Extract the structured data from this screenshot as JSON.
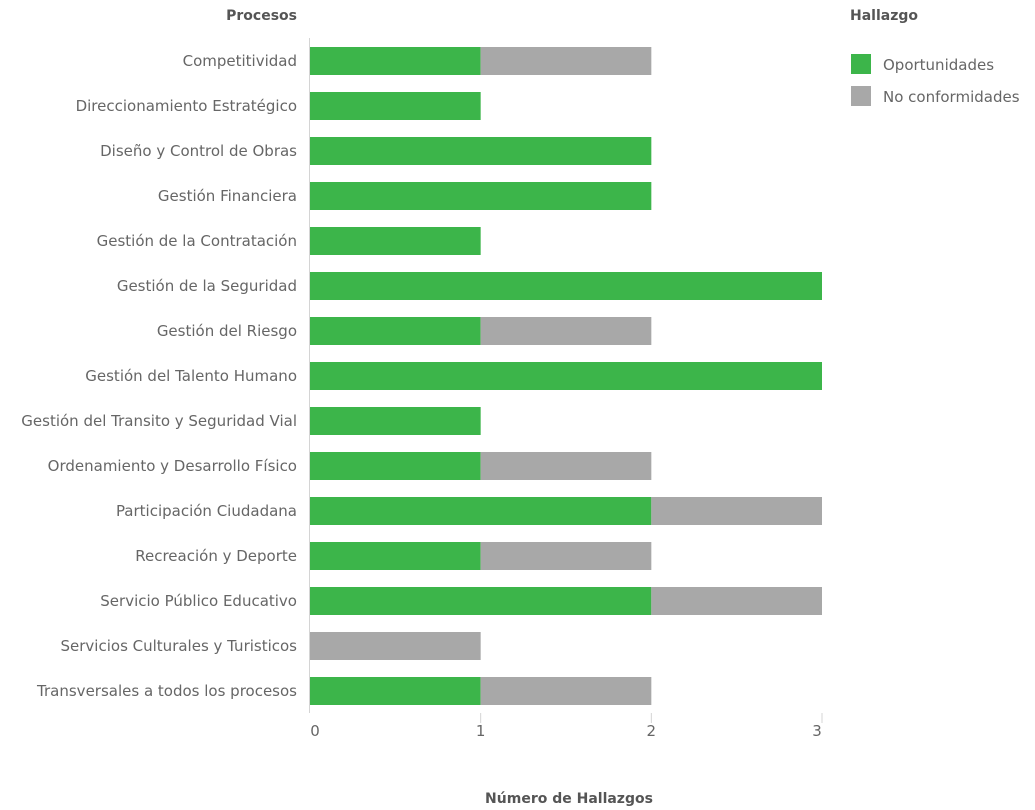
{
  "chart_data": {
    "type": "bar",
    "orientation": "horizontal",
    "stacked": true,
    "ylabel": "Procesos",
    "xlabel": "Número de Hallazgos",
    "xlim": [
      0,
      3
    ],
    "xticks": [
      "0",
      "1",
      "2",
      "3"
    ],
    "grid": false,
    "legend": {
      "title": "Hallazgo",
      "position": "top-right"
    },
    "categories": [
      "Competitividad",
      "Direccionamiento Estratégico",
      "Diseño y Control de Obras",
      "Gestión Financiera",
      "Gestión de la Contratación",
      "Gestión de la Seguridad",
      "Gestión del Riesgo",
      "Gestión del Talento Humano",
      "Gestión del Transito y Seguridad Vial",
      "Ordenamiento y Desarrollo Físico",
      "Participación Ciudadana",
      "Recreación y Deporte",
      "Servicio Público Educativo",
      "Servicios Culturales y Turisticos",
      "Transversales a todos los procesos"
    ],
    "series": [
      {
        "name": "Oportunidades",
        "color": "#3cb54a",
        "values": [
          1,
          1,
          2,
          2,
          1,
          3,
          1,
          3,
          1,
          1,
          2,
          1,
          2,
          0,
          1
        ]
      },
      {
        "name": "No conformidades",
        "color": "#a8a8a8",
        "values": [
          1,
          0,
          0,
          0,
          0,
          0,
          1,
          0,
          0,
          1,
          1,
          1,
          1,
          1,
          1
        ]
      }
    ]
  }
}
